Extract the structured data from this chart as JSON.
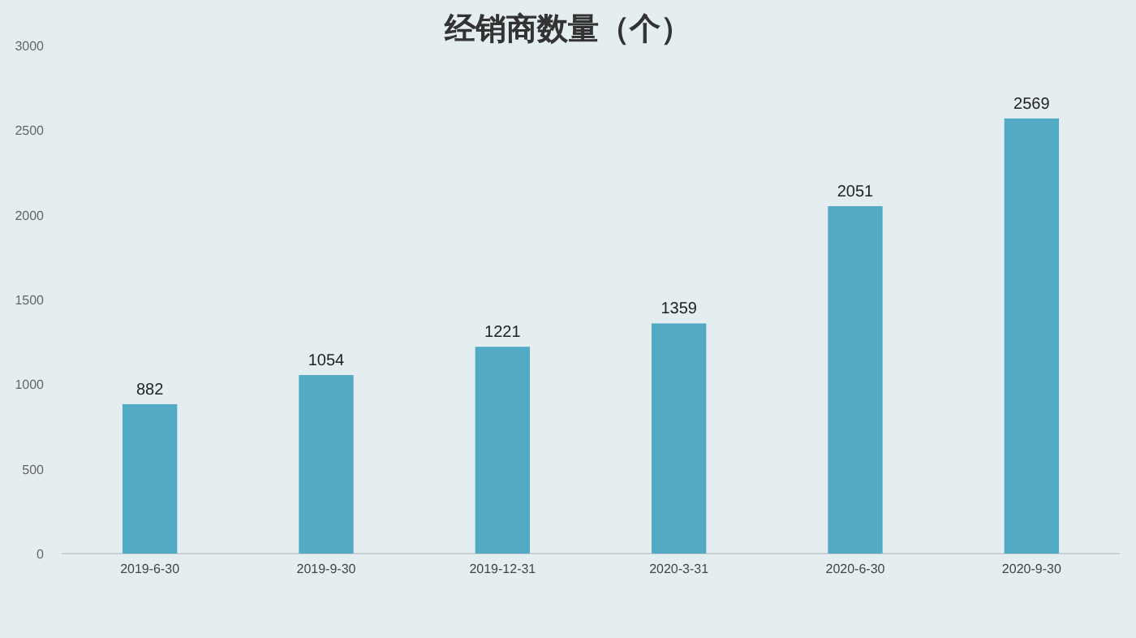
{
  "chart_data": {
    "type": "bar",
    "title": "经销商数量（个）",
    "categories": [
      "2019-6-30",
      "2019-9-30",
      "2019-12-31",
      "2020-3-31",
      "2020-6-30",
      "2020-9-30"
    ],
    "values": [
      882,
      1054,
      1221,
      1359,
      2051,
      2569
    ],
    "color": "#52aac4",
    "ylim": [
      0,
      3000
    ],
    "yticks": [
      0,
      500,
      1000,
      1500,
      2000,
      2500,
      3000
    ],
    "data_labels": true
  }
}
